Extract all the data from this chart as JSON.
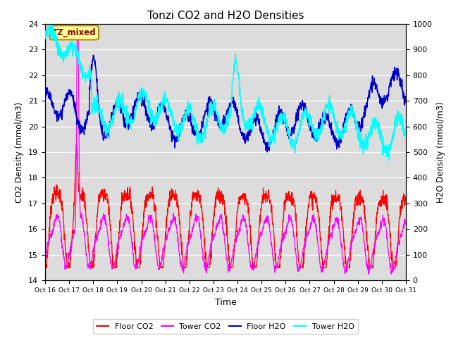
{
  "title": "Tonzi CO2 and H2O Densities",
  "xlabel": "Time",
  "ylabel_left": "CO2 Density (mmol/m3)",
  "ylabel_right": "H2O Density (mmol/m3)",
  "ylim_left": [
    14.0,
    24.0
  ],
  "ylim_right": [
    0,
    1000
  ],
  "yticks_left": [
    14.0,
    15.0,
    16.0,
    17.0,
    18.0,
    19.0,
    20.0,
    21.0,
    22.0,
    23.0,
    24.0
  ],
  "yticks_right": [
    0,
    100,
    200,
    300,
    400,
    500,
    600,
    700,
    800,
    900,
    1000
  ],
  "xtick_labels": [
    "Oct 16",
    "Oct 17",
    "Oct 18",
    "Oct 19",
    "Oct 20",
    "Oct 21",
    "Oct 22",
    "Oct 23",
    "Oct 24",
    "Oct 25",
    "Oct 26",
    "Oct 27",
    "Oct 28",
    "Oct 29",
    "Oct 30",
    "Oct 31"
  ],
  "annotation_text": "TZ_mixed",
  "colors": {
    "floor_co2": "#FF0000",
    "tower_co2": "#FF00FF",
    "floor_h2o": "#0000CC",
    "tower_h2o": "#00FFFF"
  },
  "background_color": "#DCDCDC",
  "grid_color": "#FFFFFF",
  "legend_labels": [
    "Floor CO2",
    "Tower CO2",
    "Floor H2O",
    "Tower H2O"
  ]
}
